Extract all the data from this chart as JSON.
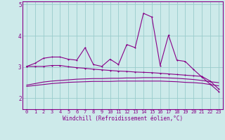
{
  "xlabel": "Windchill (Refroidissement éolien,°C)",
  "background_color": "#cdeaea",
  "line_color": "#880088",
  "grid_color": "#99cccc",
  "y_ticks": [
    2,
    3,
    4,
    5
  ],
  "ylim": [
    1.65,
    5.1
  ],
  "xlim": [
    -0.5,
    23.5
  ],
  "series1": [
    3.02,
    3.12,
    3.28,
    3.32,
    3.32,
    3.25,
    3.22,
    3.62,
    3.08,
    3.02,
    3.25,
    3.08,
    3.72,
    3.62,
    4.72,
    4.6,
    3.05,
    4.02,
    3.22,
    3.18,
    2.92,
    2.68,
    2.45,
    2.22
  ],
  "series2": [
    3.02,
    3.02,
    3.02,
    3.05,
    3.05,
    3.01,
    2.98,
    2.96,
    2.93,
    2.91,
    2.89,
    2.87,
    2.86,
    2.84,
    2.83,
    2.82,
    2.8,
    2.78,
    2.76,
    2.74,
    2.72,
    2.7,
    2.55,
    2.3
  ],
  "series3": [
    2.42,
    2.47,
    2.52,
    2.55,
    2.57,
    2.59,
    2.61,
    2.62,
    2.63,
    2.63,
    2.64,
    2.64,
    2.65,
    2.65,
    2.66,
    2.66,
    2.66,
    2.65,
    2.64,
    2.62,
    2.6,
    2.57,
    2.53,
    2.5
  ],
  "series4": [
    2.38,
    2.41,
    2.44,
    2.47,
    2.49,
    2.51,
    2.52,
    2.53,
    2.54,
    2.54,
    2.54,
    2.55,
    2.55,
    2.55,
    2.55,
    2.55,
    2.55,
    2.54,
    2.53,
    2.51,
    2.5,
    2.48,
    2.44,
    2.4
  ],
  "tick_fontsize": 5.0,
  "label_fontsize": 5.5
}
